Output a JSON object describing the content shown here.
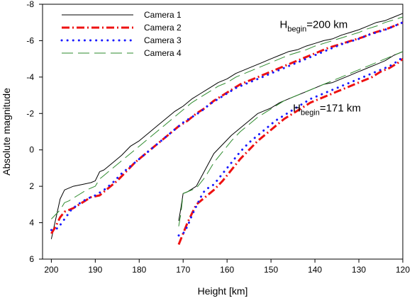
{
  "chart_data": {
    "type": "line",
    "xlabel": "Height [km]",
    "ylabel": "Absolute magnitude",
    "xlim": [
      202,
      120
    ],
    "ylim": [
      6,
      -8
    ],
    "x_reversed": true,
    "y_reversed": true,
    "xticks": [
      200,
      190,
      180,
      170,
      160,
      150,
      140,
      130,
      120
    ],
    "yticks": [
      -8,
      -6,
      -4,
      -2,
      0,
      2,
      4,
      6
    ],
    "xtick_labels": [
      "200",
      "190",
      "180",
      "170",
      "160",
      "150",
      "140",
      "130",
      "120"
    ],
    "ytick_labels": [
      "-8",
      "-6",
      "-4",
      "-2",
      "0",
      "2",
      "4",
      "6"
    ],
    "grid": false,
    "legend_position": "top-left",
    "series": [
      {
        "name": "Camera 1",
        "color": "#000000",
        "style": "solid",
        "width": 1,
        "segments": [
          {
            "x": [
              200,
              199,
              198,
              197,
              195,
              193,
              191,
              190,
              189,
              188,
              187,
              186,
              184,
              182,
              180,
              178,
              176,
              174,
              172,
              170,
              168,
              166,
              164,
              162,
              160,
              158,
              156,
              154,
              152,
              150,
              148,
              146,
              144,
              142,
              140,
              138,
              136,
              134,
              132,
              130,
              128,
              126,
              124,
              122,
              120
            ],
            "y": [
              4.9,
              3.8,
              2.7,
              2.2,
              2.0,
              1.9,
              1.8,
              1.7,
              1.2,
              1.1,
              0.9,
              0.7,
              0.3,
              -0.2,
              -0.5,
              -0.9,
              -1.3,
              -1.7,
              -2.1,
              -2.4,
              -2.8,
              -3.1,
              -3.4,
              -3.7,
              -3.9,
              -4.2,
              -4.4,
              -4.6,
              -4.8,
              -5.0,
              -5.2,
              -5.4,
              -5.5,
              -5.7,
              -5.85,
              -6.0,
              -6.1,
              -6.3,
              -6.45,
              -6.6,
              -6.8,
              -7.0,
              -7.1,
              -7.3,
              -7.5
            ]
          },
          {
            "x": [
              171,
              170.5,
              170,
              169,
              167,
              165,
              163,
              161,
              159,
              157,
              155,
              153,
              150,
              148,
              146,
              144,
              142,
              140,
              138,
              136,
              134,
              132,
              130,
              128,
              126,
              124,
              122,
              120
            ],
            "y": [
              3.9,
              3.2,
              2.4,
              2.3,
              2.0,
              1.1,
              0.2,
              -0.3,
              -0.8,
              -1.2,
              -1.6,
              -2.0,
              -2.3,
              -2.6,
              -2.8,
              -3.0,
              -3.2,
              -3.4,
              -3.6,
              -3.7,
              -3.9,
              -4.1,
              -4.3,
              -4.5,
              -4.7,
              -4.9,
              -5.2,
              -5.4
            ]
          }
        ]
      },
      {
        "name": "Camera 2",
        "color": "#ee1111",
        "style": "dashdot",
        "width": 3,
        "segments": [
          {
            "x": [
              200,
              199,
              198,
              197,
              196,
              195,
              193,
              191,
              189,
              187,
              185,
              183,
              181,
              179,
              177,
              175,
              173,
              171,
              169,
              167,
              165,
              163,
              161,
              159,
              157,
              155,
              153,
              151,
              149,
              147,
              145,
              143,
              141,
              139,
              137,
              135,
              133,
              131,
              129,
              127,
              125,
              123,
              121,
              120
            ],
            "y": [
              4.6,
              4.2,
              3.7,
              3.4,
              3.3,
              3.2,
              2.9,
              2.6,
              2.5,
              2.1,
              1.7,
              1.2,
              0.7,
              0.3,
              -0.1,
              -0.5,
              -0.9,
              -1.3,
              -1.6,
              -2.0,
              -2.3,
              -2.7,
              -3.0,
              -3.3,
              -3.6,
              -3.8,
              -4.0,
              -4.2,
              -4.4,
              -4.6,
              -4.8,
              -5.0,
              -5.2,
              -5.4,
              -5.6,
              -5.75,
              -5.9,
              -6.05,
              -6.2,
              -6.4,
              -6.55,
              -6.7,
              -6.9,
              -7.0
            ]
          },
          {
            "x": [
              171,
              170.5,
              170,
              169,
              168,
              167,
              165,
              163,
              161,
              159,
              157,
              155,
              153,
              151,
              149,
              147,
              145,
              143,
              141,
              139,
              137,
              135,
              133,
              131,
              129,
              127,
              125,
              123,
              121,
              120
            ],
            "y": [
              5.2,
              4.9,
              4.6,
              4.0,
              3.5,
              3.0,
              2.6,
              2.2,
              1.7,
              1.1,
              0.5,
              0.0,
              -0.5,
              -0.9,
              -1.3,
              -1.7,
              -2.0,
              -2.3,
              -2.6,
              -2.8,
              -3.0,
              -3.2,
              -3.4,
              -3.6,
              -3.8,
              -4.0,
              -4.3,
              -4.5,
              -4.8,
              -5.0
            ]
          }
        ]
      },
      {
        "name": "Camera 3",
        "color": "#1a1aff",
        "style": "dotted",
        "width": 3,
        "segments": [
          {
            "x": [
              200,
              198.5,
              197,
              195.5,
              194,
              192,
              190,
              188,
              186,
              184,
              182,
              180,
              178,
              176,
              174,
              172,
              170,
              168,
              166,
              164,
              162,
              160,
              158,
              156,
              154,
              152,
              150,
              148,
              146,
              144,
              142,
              140,
              138,
              136,
              134,
              132,
              130,
              128,
              126,
              124,
              122,
              120
            ],
            "y": [
              4.4,
              4.3,
              3.8,
              3.3,
              3.0,
              2.7,
              2.5,
              2.2,
              1.8,
              1.3,
              0.9,
              0.5,
              0.1,
              -0.3,
              -0.7,
              -1.1,
              -1.5,
              -1.8,
              -2.1,
              -2.5,
              -2.8,
              -3.1,
              -3.4,
              -3.6,
              -3.8,
              -4.0,
              -4.2,
              -4.4,
              -4.6,
              -4.8,
              -5.0,
              -5.2,
              -5.4,
              -5.6,
              -5.8,
              -5.95,
              -6.1,
              -6.3,
              -6.45,
              -6.6,
              -6.8,
              -7.0
            ]
          },
          {
            "x": [
              171,
              170,
              169,
              168,
              167,
              166,
              165,
              163,
              161,
              159,
              157,
              155,
              153,
              151,
              149,
              147,
              145,
              143,
              141,
              139,
              137,
              135,
              133,
              131,
              129,
              127,
              125,
              123,
              121,
              120
            ],
            "y": [
              4.7,
              4.6,
              4.2,
              3.6,
              3.1,
              2.6,
              2.2,
              1.9,
              1.3,
              0.7,
              0.1,
              -0.4,
              -0.8,
              -1.2,
              -1.6,
              -1.9,
              -2.2,
              -2.5,
              -2.8,
              -3.0,
              -3.2,
              -3.4,
              -3.6,
              -3.8,
              -4.0,
              -4.2,
              -4.4,
              -4.6,
              -4.9,
              -5.1
            ]
          }
        ]
      },
      {
        "name": "Camera 4",
        "color": "#2e8b2e",
        "style": "dashed",
        "width": 1,
        "segments": [
          {
            "x": [
              200,
              198,
              197,
              196,
              194,
              192,
              190,
              189,
              188,
              186,
              184,
              182,
              180,
              178,
              176,
              174,
              172,
              170,
              168,
              166,
              164,
              162,
              160,
              158,
              156,
              154,
              152,
              150,
              148,
              146,
              144,
              142,
              140,
              138,
              136,
              134,
              132,
              130,
              128,
              126,
              124,
              122,
              120
            ],
            "y": [
              3.8,
              3.3,
              2.9,
              2.8,
              2.5,
              2.2,
              2.0,
              1.6,
              1.4,
              1.0,
              0.6,
              0.2,
              -0.2,
              -0.6,
              -1.0,
              -1.4,
              -1.8,
              -2.2,
              -2.6,
              -2.9,
              -3.2,
              -3.5,
              -3.7,
              -4.0,
              -4.2,
              -4.4,
              -4.6,
              -4.8,
              -5.0,
              -5.2,
              -5.35,
              -5.5,
              -5.7,
              -5.85,
              -6.0,
              -6.15,
              -6.3,
              -6.45,
              -6.65,
              -6.8,
              -7.0,
              -7.15,
              -7.3
            ]
          },
          {
            "x": [
              171,
              170.5,
              170,
              169,
              167,
              165,
              163,
              161,
              159,
              157,
              155,
              153,
              151,
              149,
              147,
              145,
              143,
              141,
              139,
              137,
              135,
              133,
              131,
              129,
              127,
              125,
              123,
              121,
              120
            ],
            "y": [
              4.2,
              3.5,
              2.4,
              2.3,
              2.1,
              1.5,
              0.7,
              0.1,
              -0.5,
              -1.0,
              -1.4,
              -1.8,
              -2.1,
              -2.4,
              -2.7,
              -2.9,
              -3.1,
              -3.3,
              -3.5,
              -3.7,
              -3.9,
              -4.1,
              -4.3,
              -4.5,
              -4.7,
              -4.9,
              -5.1,
              -5.3,
              -5.4
            ]
          }
        ]
      }
    ],
    "annotations": [
      {
        "main": "H",
        "sub": "begin",
        "rest": "=200 km",
        "x": 148,
        "y": -6.7
      },
      {
        "main": "H",
        "sub": "begin",
        "rest": "=171 km",
        "x": 145,
        "y": -2.1
      }
    ]
  }
}
